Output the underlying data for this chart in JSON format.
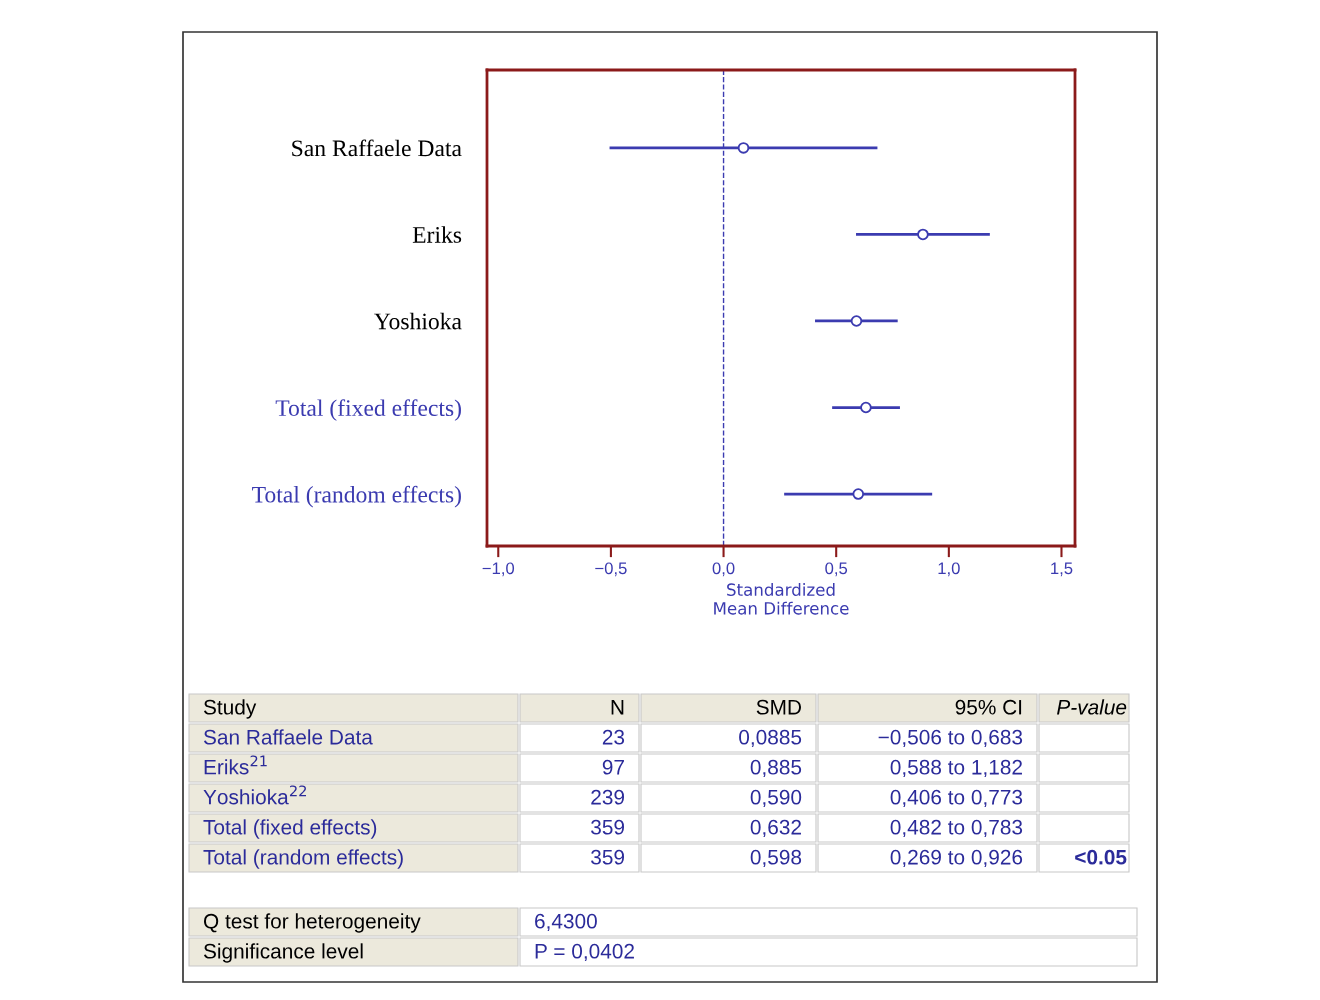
{
  "chart_data": {
    "type": "scatter",
    "orientation": "horizontal",
    "categories": [
      "San Raffaele Data",
      "Eriks",
      "Yoshioka",
      "Total (fixed effects)",
      "Total (random effects)"
    ],
    "series": [
      {
        "color": "#3b3bb0",
        "values": [
          0.0885,
          0.885,
          0.59,
          null,
          null
        ],
        "errors": [
          [
            -0.506,
            0.683
          ],
          [
            0.588,
            1.182
          ],
          [
            0.406,
            0.773
          ],
          null,
          null
        ]
      },
      {
        "color": "#3b3bb0",
        "values": [
          null,
          null,
          null,
          0.632,
          0.598
        ],
        "errors": [
          null,
          null,
          null,
          [
            0.482,
            0.783
          ],
          [
            0.269,
            0.926
          ]
        ]
      }
    ],
    "marker": "circle",
    "grid": false,
    "legend": false,
    "xlabel": "Standardized\nMean Difference",
    "xlim": [
      -1.05,
      1.56
    ],
    "xticks": [
      {
        "value": -1,
        "label": "−1,0"
      },
      {
        "value": -0.5,
        "label": "−0,5"
      },
      {
        "value": 0,
        "label": "0,0"
      },
      {
        "value": 0.5,
        "label": "0,5"
      },
      {
        "value": 1,
        "label": "1,0"
      },
      {
        "value": 1.5,
        "label": "1,5"
      }
    ],
    "ref_lines": [
      {
        "axis": "x",
        "value": 0,
        "color": "#3b3bb0",
        "line_style": "dashed"
      }
    ],
    "annotations": [
      "Study",
      "N",
      "SMD",
      "95% CI",
      "P-value",
      "San Raffaele Data",
      "23",
      "0,0885",
      "−0,506 to 0,683",
      "Eriks$^{21}$",
      "97",
      "0,885",
      "0,588 to 1,182",
      "Yoshioka$^{22}$",
      "239",
      "0,590",
      "0,406 to 0,773",
      "Total (fixed effects)",
      "359",
      "0,632",
      "0,482 to 0,783",
      "Total (random effects)",
      "359",
      "0,598",
      "0,269 to 0,926",
      "<0.05",
      "Q test for heterogeneity",
      "6,4300",
      "Significance level",
      "P = 0,0402"
    ]
  }
}
